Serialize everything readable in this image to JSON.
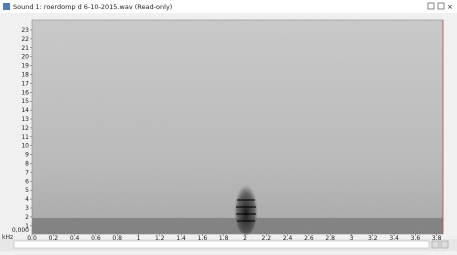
{
  "window": {
    "title": "Sound 1: roerdomp d 6-10-2015.wav (Read-only)"
  },
  "spectrogram": {
    "y_ticks": [
      "23",
      "22",
      "21",
      "20",
      "19",
      "18",
      "17",
      "16",
      "15",
      "14",
      "13",
      "12",
      "11",
      "10",
      "9",
      "8",
      "7",
      "6",
      "5",
      "4",
      "3",
      "2",
      "1"
    ],
    "y_zero_label": "0,000",
    "y_unit": "kHz",
    "x_ticks": [
      "0.0",
      "0.2",
      "0.4",
      "0.6",
      "0.8",
      "1",
      "1.2",
      "1.4",
      "1.6",
      "1.8",
      "2",
      "2.2",
      "2.4",
      "2.6",
      "2.8",
      "3",
      "3.2",
      "3.4",
      "3.6",
      "3.8"
    ]
  }
}
